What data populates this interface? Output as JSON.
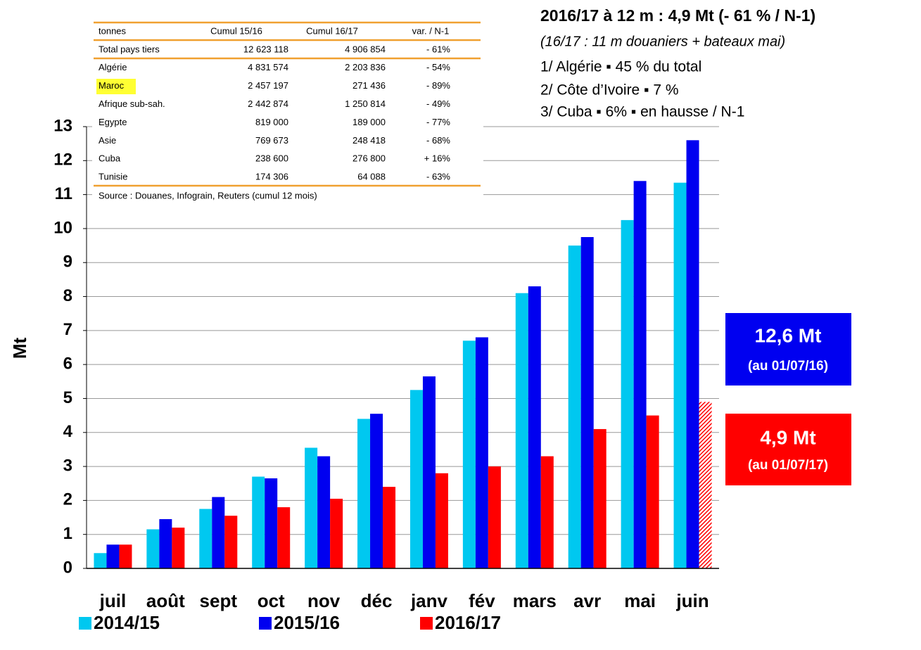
{
  "chart_data": {
    "type": "bar",
    "ylabel": "Mt",
    "categories": [
      "juil",
      "août",
      "sept",
      "oct",
      "nov",
      "déc",
      "janv",
      "fév",
      "mars",
      "avr",
      "mai",
      "juin"
    ],
    "series": [
      {
        "name": "2014/15",
        "color": "#00c8f0",
        "values": [
          0.45,
          1.15,
          1.75,
          2.7,
          3.55,
          4.4,
          5.25,
          6.7,
          8.1,
          9.5,
          10.25,
          11.35
        ]
      },
      {
        "name": "2015/16",
        "color": "#0000f0",
        "values": [
          0.7,
          1.45,
          2.1,
          2.65,
          3.3,
          4.55,
          5.65,
          6.8,
          8.3,
          9.75,
          11.4,
          12.6
        ]
      },
      {
        "name": "2016/17",
        "color": "#ff0000",
        "values": [
          0.7,
          1.2,
          1.55,
          1.8,
          2.05,
          2.4,
          2.8,
          3.0,
          3.3,
          4.1,
          4.5,
          4.9
        ]
      }
    ],
    "ylim": [
      0,
      13
    ],
    "yticks": [
      0,
      1,
      2,
      3,
      4,
      5,
      6,
      7,
      8,
      9,
      10,
      11,
      12,
      13
    ],
    "grid": true
  },
  "annotations": {
    "headline": "2016/17 à 12 m : 4,9 Mt (- 61 % / N-1)",
    "note": "(16/17 : 11 m douaniers + bateaux mai)",
    "lines": [
      "1/ Algérie ▪ 45 % du total",
      "2/ Côte d’Ivoire ▪ 7 %",
      "3/ Cuba ▪ 6% ▪ en hausse / N-1"
    ],
    "box_1516": [
      "12,6 Mt",
      "(au 01/07/16)"
    ],
    "box_1617": [
      "4,9 Mt",
      "(au 01/07/17)"
    ]
  },
  "table": {
    "header": [
      "tonnes",
      "Cumul 15/16",
      "Cumul 16/17",
      "var. / N-1"
    ],
    "rows": [
      [
        "Total pays tiers",
        "12 623 118",
        "4 906 854",
        "- 61%"
      ],
      [
        "Algérie",
        "4 831 574",
        "2 203 836",
        "- 54%"
      ],
      [
        "Maroc",
        "2 457 197",
        "271 436",
        "- 89%"
      ],
      [
        "Afrique sub-sah.",
        "2 442 874",
        "1 250 814",
        "- 49%"
      ],
      [
        "Egypte",
        "819 000",
        "189 000",
        "- 77%"
      ],
      [
        "Asie",
        "769 673",
        "248 418",
        "- 68%"
      ],
      [
        "Cuba",
        "238 600",
        "276 800",
        "+ 16%"
      ],
      [
        "Tunisie",
        "174 306",
        "64 088",
        "- 63%"
      ]
    ],
    "source": "Source : Douanes, Infograin, Reuters (cumul 12 mois)"
  }
}
